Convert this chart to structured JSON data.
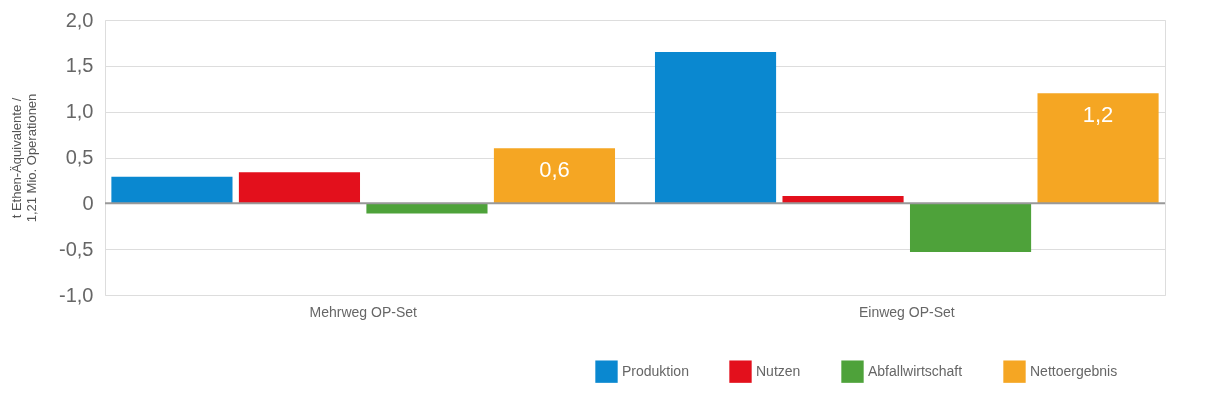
{
  "chart_data": {
    "type": "bar",
    "ylabel": "t Ethen-Äquivalente /\n1,21 Mio. Operationen",
    "categories": [
      "Mehrweg OP-Set",
      "Einweg OP-Set"
    ],
    "series": [
      {
        "name": "Produktion",
        "color": "#0a88d0",
        "values": [
          0.29,
          1.65
        ]
      },
      {
        "name": "Nutzen",
        "color": "#e3101c",
        "values": [
          0.34,
          0.08
        ]
      },
      {
        "name": "Abfallwirtschaft",
        "color": "#4ea23a",
        "values": [
          -0.11,
          -0.53
        ]
      },
      {
        "name": "Nettoergebnis",
        "color": "#f5a623",
        "values": [
          0.6,
          1.2
        ],
        "value_labels": [
          "0,6",
          "1,2"
        ]
      }
    ],
    "ylim": [
      -1.0,
      2.0
    ],
    "yticks": [
      {
        "value": 2.0,
        "label": "2,0"
      },
      {
        "value": 1.5,
        "label": "1,5"
      },
      {
        "value": 1.0,
        "label": "1,0"
      },
      {
        "value": 0.5,
        "label": "0,5"
      },
      {
        "value": 0,
        "label": "0"
      },
      {
        "value": -0.5,
        "label": "-0,5"
      },
      {
        "value": -1.0,
        "label": "-1,0"
      }
    ],
    "ref_lines": [
      {
        "axis": "y",
        "value": 0,
        "color": "#999999"
      }
    ],
    "grid": "y",
    "legend": "bottom right"
  }
}
